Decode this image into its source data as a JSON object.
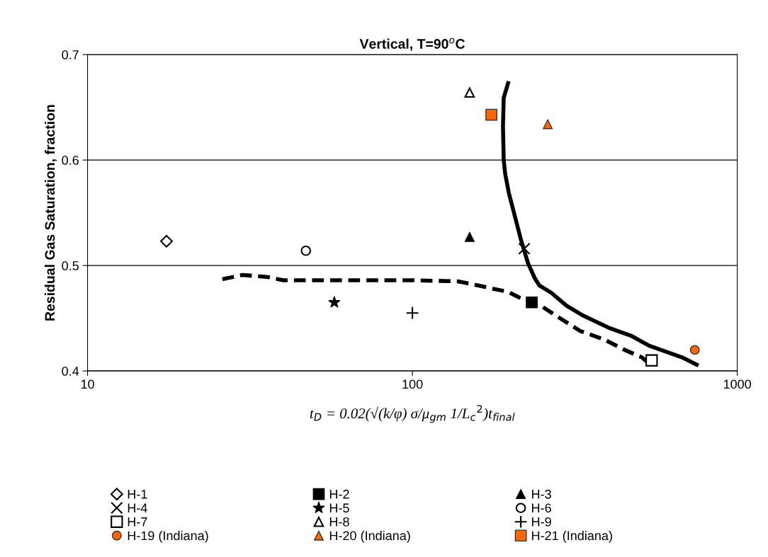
{
  "chart_data": {
    "type": "scatter",
    "title": "Vertical, T=90$^{o}$C",
    "xlabel": "t$_{D}$ = 0.02(√(k/φ) σ/μ$_{gm}$ 1/L$_{c}$$^{2}$)t$_{final}$",
    "ylabel": "Residual Gas Saturation, fraction",
    "log": "x",
    "xlim": [
      10,
      1000
    ],
    "xticks": [
      10,
      100,
      1000
    ],
    "ylim": [
      0.4,
      0.7
    ],
    "yticks": [
      0.4,
      0.5,
      0.6,
      0.7
    ],
    "grid": "y",
    "legend": "bottom",
    "series": [
      {
        "name": "H-1",
        "marker": "diamond",
        "color": "#ffffff",
        "x": [
          17.5
        ],
        "values": [
          0.523
        ]
      },
      {
        "name": "H-2",
        "marker": "square",
        "color": "#000000",
        "x": [
          233
        ],
        "values": [
          0.465
        ]
      },
      {
        "name": "H-3",
        "marker": "triangle",
        "color": "#000000",
        "x": [
          150
        ],
        "values": [
          0.527
        ]
      },
      {
        "name": "H-4",
        "marker": "cross",
        "color": "#000000",
        "x": [
          221
        ],
        "values": [
          0.516
        ]
      },
      {
        "name": "H-5",
        "marker": "star",
        "color": "#000000",
        "x": [
          57.5
        ],
        "values": [
          0.465
        ]
      },
      {
        "name": "H-6",
        "marker": "circle",
        "color": "#ffffff",
        "x": [
          47
        ],
        "values": [
          0.514
        ]
      },
      {
        "name": "H-7",
        "marker": "square",
        "color": "#ffffff",
        "x": [
          545
        ],
        "values": [
          0.41
        ]
      },
      {
        "name": "H-8",
        "marker": "triangle",
        "color": "#ffffff",
        "x": [
          150
        ],
        "values": [
          0.664
        ]
      },
      {
        "name": "H-9",
        "marker": "plus",
        "color": "#000000",
        "x": [
          100
        ],
        "values": [
          0.455
        ]
      },
      {
        "name": "H-19 (Indiana)",
        "marker": "circle",
        "color": "#ff6600",
        "x": [
          740
        ],
        "values": [
          0.42
        ]
      },
      {
        "name": "H-20 (Indiana)",
        "marker": "triangle",
        "color": "#ff6600",
        "x": [
          261
        ],
        "values": [
          0.634
        ]
      },
      {
        "name": "H-21 (Indiana)",
        "marker": "square",
        "color": "#ff6600",
        "x": [
          175
        ],
        "values": [
          0.643
        ]
      },
      {
        "type": "line",
        "line_style": "solid",
        "marker": "none",
        "color": "#000000",
        "x": [
          197,
          191,
          190,
          191,
          193,
          198,
          207,
          216,
          227,
          238,
          246,
          268,
          298,
          333,
          402,
          474,
          535,
          675,
          750
        ],
        "values": [
          0.673,
          0.659,
          0.632,
          0.6,
          0.587,
          0.569,
          0.546,
          0.524,
          0.502,
          0.488,
          0.481,
          0.474,
          0.462,
          0.453,
          0.441,
          0.433,
          0.424,
          0.413,
          0.406
        ]
      },
      {
        "type": "line",
        "line_style": "dashed",
        "marker": "none",
        "color": "#000000",
        "x": [
          26,
          30,
          36,
          40,
          60,
          100,
          138,
          149,
          177,
          197,
          212,
          251,
          278,
          328,
          388,
          450,
          508,
          535
        ],
        "values": [
          0.487,
          0.491,
          0.489,
          0.486,
          0.486,
          0.486,
          0.485,
          0.483,
          0.478,
          0.475,
          0.47,
          0.461,
          0.452,
          0.438,
          0.43,
          0.42,
          0.413,
          0.407
        ]
      }
    ]
  }
}
